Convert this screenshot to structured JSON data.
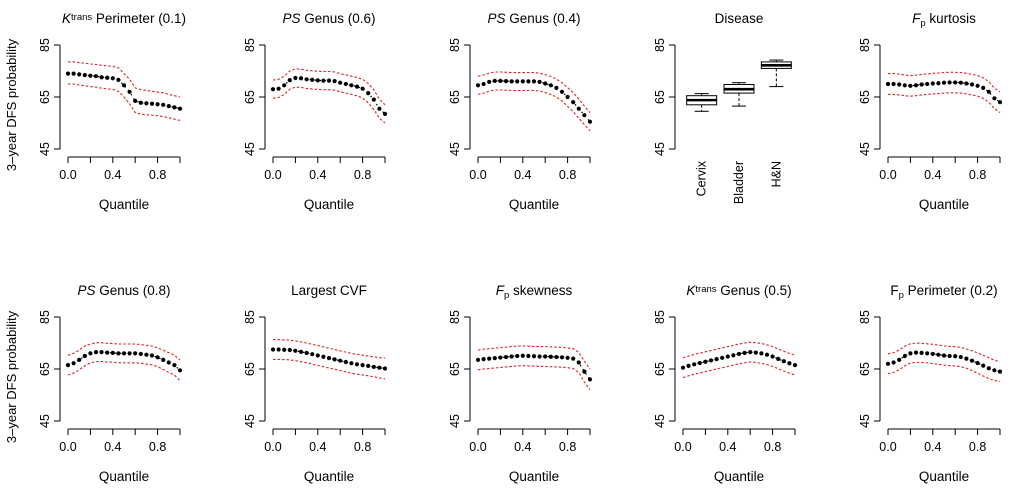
{
  "ylabel": "3–year DFS probability",
  "xlabel": "Quantile",
  "colors": {
    "main": "#000000",
    "ci": "#e32020",
    "box": "#000000"
  },
  "charts": [
    {
      "id": "ktrans-perimeter",
      "type": "line",
      "title": {
        "parts": [
          {
            "text": "K",
            "style": "italic"
          },
          {
            "text": "trans",
            "style": "sup"
          },
          {
            "text": " Perimeter (0.1)",
            "style": "normal"
          }
        ]
      },
      "xticks": [
        "0.0",
        "0.4",
        "0.8"
      ],
      "yticks": [
        "45",
        "65",
        "85"
      ],
      "ylim": [
        45,
        85
      ],
      "xlim": [
        0,
        1
      ],
      "x": [
        0,
        0.05,
        0.1,
        0.15,
        0.2,
        0.25,
        0.3,
        0.35,
        0.4,
        0.45,
        0.5,
        0.55,
        0.6,
        0.65,
        0.7,
        0.75,
        0.8,
        0.85,
        0.9,
        0.95,
        1.0
      ],
      "mean": [
        74,
        74,
        73.7,
        73.4,
        73.2,
        73,
        72.6,
        72.4,
        72.2,
        71.6,
        69.5,
        67,
        63.5,
        62.8,
        62.6,
        62.4,
        62.2,
        62,
        61.5,
        61,
        60.5
      ],
      "upper": [
        78.5,
        78.5,
        78.2,
        78,
        77.7,
        77.5,
        77.2,
        77,
        76.8,
        76.2,
        74,
        71.8,
        68.5,
        67.8,
        67.5,
        67.2,
        66.9,
        66.6,
        66,
        65.5,
        65
      ],
      "lower": [
        70,
        70,
        69.6,
        69.3,
        69,
        68.8,
        68.4,
        68.1,
        67.9,
        67.2,
        65,
        62.4,
        59,
        58.4,
        58.2,
        58,
        57.8,
        57.5,
        57,
        56.5,
        56
      ]
    },
    {
      "id": "ps-genus-06",
      "type": "line",
      "title": {
        "parts": [
          {
            "text": "PS",
            "style": "italic"
          },
          {
            "text": " Genus (0.6)",
            "style": "normal"
          }
        ]
      },
      "xticks": [
        "0.0",
        "0.4",
        "0.8"
      ],
      "yticks": [
        "45",
        "65",
        "85"
      ],
      "ylim": [
        45,
        85
      ],
      "xlim": [
        0,
        1
      ],
      "x": [
        0,
        0.05,
        0.1,
        0.15,
        0.2,
        0.25,
        0.3,
        0.35,
        0.4,
        0.45,
        0.5,
        0.55,
        0.6,
        0.65,
        0.7,
        0.75,
        0.8,
        0.85,
        0.9,
        0.95,
        1.0
      ],
      "mean": [
        68,
        68.2,
        69.5,
        71.5,
        72.3,
        72.2,
        71.8,
        71.6,
        71.4,
        71.3,
        71.3,
        71.1,
        70.5,
        70,
        69.5,
        69,
        68.2,
        66.5,
        64,
        60.5,
        58.5
      ],
      "upper": [
        71.5,
        71.8,
        73,
        75,
        75.8,
        75.7,
        75.3,
        75.1,
        74.9,
        74.8,
        74.8,
        74.6,
        74,
        73.5,
        73,
        72.5,
        71.8,
        70.2,
        67.8,
        64.2,
        62
      ],
      "lower": [
        64.5,
        64.8,
        66,
        68,
        68.8,
        68.7,
        68.3,
        68.1,
        67.9,
        67.8,
        67.8,
        67.6,
        67,
        66.5,
        66,
        65.5,
        64.6,
        62.8,
        60.2,
        56.8,
        55
      ]
    },
    {
      "id": "ps-genus-04",
      "type": "line",
      "title": {
        "parts": [
          {
            "text": "PS",
            "style": "italic"
          },
          {
            "text": " Genus (0.4)",
            "style": "normal"
          }
        ]
      },
      "xticks": [
        "0.0",
        "0.4",
        "0.8"
      ],
      "yticks": [
        "45",
        "65",
        "85"
      ],
      "ylim": [
        45,
        85
      ],
      "xlim": [
        0,
        1
      ],
      "x": [
        0,
        0.05,
        0.1,
        0.15,
        0.2,
        0.25,
        0.3,
        0.35,
        0.4,
        0.45,
        0.5,
        0.55,
        0.6,
        0.65,
        0.7,
        0.75,
        0.8,
        0.85,
        0.9,
        0.95,
        1.0
      ],
      "mean": [
        69.5,
        70,
        70.8,
        71.2,
        71.2,
        71.1,
        71,
        71,
        71,
        71,
        71,
        70.8,
        70.2,
        69.5,
        68.5,
        67,
        65,
        63,
        60.5,
        58,
        55.5
      ],
      "upper": [
        73,
        73.5,
        74.2,
        74.6,
        74.6,
        74.5,
        74.4,
        74.4,
        74.4,
        74.4,
        74.4,
        74.2,
        73.6,
        72.9,
        71.9,
        70.5,
        68.6,
        66.7,
        64.2,
        61.5,
        59
      ],
      "lower": [
        66,
        66.5,
        67.3,
        67.7,
        67.7,
        67.6,
        67.5,
        67.5,
        67.5,
        67.5,
        67.5,
        67.3,
        66.7,
        66,
        65,
        63.5,
        61.4,
        59.4,
        56.8,
        54.4,
        52
      ]
    },
    {
      "id": "disease",
      "type": "box",
      "title": {
        "parts": [
          {
            "text": "Disease",
            "style": "normal"
          }
        ]
      },
      "yticks": [
        "45",
        "65",
        "85"
      ],
      "ylim": [
        45,
        85
      ],
      "categories": [
        "Cervix",
        "Bladder",
        "H&N"
      ],
      "boxes": [
        {
          "min": 59.5,
          "q1": 62,
          "median": 63.8,
          "q3": 65.5,
          "max": 66.3
        },
        {
          "min": 61.5,
          "q1": 66.5,
          "median": 68,
          "q3": 69.8,
          "max": 70.5
        },
        {
          "min": 69,
          "q1": 76,
          "median": 77.2,
          "q3": 78.5,
          "max": 79.2
        }
      ]
    },
    {
      "id": "fp-kurtosis",
      "type": "line",
      "title": {
        "parts": [
          {
            "text": "F",
            "style": "italic"
          },
          {
            "text": "p",
            "style": "sub"
          },
          {
            "text": " kurtosis",
            "style": "normal"
          }
        ]
      },
      "xticks": [
        "0.0",
        "0.4",
        "0.8"
      ],
      "yticks": [
        "45",
        "65",
        "85"
      ],
      "ylim": [
        45,
        85
      ],
      "xlim": [
        0,
        1
      ],
      "x": [
        0,
        0.05,
        0.1,
        0.15,
        0.2,
        0.25,
        0.3,
        0.35,
        0.4,
        0.45,
        0.5,
        0.55,
        0.6,
        0.65,
        0.7,
        0.75,
        0.8,
        0.85,
        0.9,
        0.95,
        1.0
      ],
      "mean": [
        70,
        70,
        69.8,
        69.5,
        69.3,
        69.5,
        69.8,
        70,
        70.2,
        70.3,
        70.5,
        70.6,
        70.6,
        70.5,
        70.2,
        69.8,
        69.3,
        68.5,
        67,
        64.5,
        63
      ],
      "upper": [
        74,
        74,
        73.8,
        73.5,
        73.2,
        73.4,
        73.7,
        73.9,
        74.1,
        74.2,
        74.4,
        74.5,
        74.5,
        74.4,
        74.1,
        73.7,
        73.2,
        72.4,
        70.9,
        68.4,
        67
      ],
      "lower": [
        66,
        66,
        65.8,
        65.5,
        65.3,
        65.5,
        65.8,
        66,
        66.2,
        66.3,
        66.5,
        66.6,
        66.6,
        66.5,
        66.2,
        65.8,
        65.3,
        64.5,
        63,
        60.5,
        59
      ]
    },
    {
      "id": "ps-genus-08",
      "type": "line",
      "title": {
        "parts": [
          {
            "text": "PS",
            "style": "italic"
          },
          {
            "text": " Genus (0.8)",
            "style": "normal"
          }
        ]
      },
      "xticks": [
        "0.0",
        "0.4",
        "0.8"
      ],
      "yticks": [
        "45",
        "65",
        "85"
      ],
      "ylim": [
        45,
        85
      ],
      "xlim": [
        0,
        1
      ],
      "x": [
        0,
        0.05,
        0.1,
        0.15,
        0.2,
        0.25,
        0.3,
        0.35,
        0.4,
        0.45,
        0.5,
        0.55,
        0.6,
        0.65,
        0.7,
        0.75,
        0.8,
        0.85,
        0.9,
        0.95,
        1.0
      ],
      "mean": [
        66.5,
        67.2,
        68.5,
        70,
        71,
        71.5,
        71.5,
        71.3,
        71.2,
        71,
        71,
        71,
        71,
        70.8,
        70.5,
        70.2,
        69.5,
        68.5,
        67.5,
        66.5,
        64.5
      ],
      "upper": [
        70.3,
        71,
        72.3,
        73.8,
        74.6,
        75.1,
        75.1,
        74.9,
        74.8,
        74.6,
        74.6,
        74.6,
        74.6,
        74.4,
        74.1,
        73.8,
        73.1,
        72.2,
        71.3,
        70.3,
        68.5
      ],
      "lower": [
        62.7,
        63.4,
        64.7,
        66.2,
        67.4,
        67.9,
        67.9,
        67.7,
        67.6,
        67.4,
        67.4,
        67.4,
        67.4,
        67.2,
        66.9,
        66.6,
        65.9,
        64.8,
        63.7,
        62.7,
        60.5
      ]
    },
    {
      "id": "largest-cvf",
      "type": "line",
      "title": {
        "parts": [
          {
            "text": "Largest CVF",
            "style": "normal"
          }
        ]
      },
      "xticks": [
        "0.0",
        "0.4",
        "0.8"
      ],
      "yticks": [
        "45",
        "65",
        "85"
      ],
      "ylim": [
        45,
        85
      ],
      "xlim": [
        0,
        1
      ],
      "x": [
        0,
        0.05,
        0.1,
        0.15,
        0.2,
        0.25,
        0.3,
        0.35,
        0.4,
        0.45,
        0.5,
        0.55,
        0.6,
        0.65,
        0.7,
        0.75,
        0.8,
        0.85,
        0.9,
        0.95,
        1.0
      ],
      "mean": [
        72.5,
        72.5,
        72.4,
        72.3,
        72,
        71.6,
        71.2,
        70.7,
        70.2,
        69.7,
        69.2,
        68.7,
        68.2,
        67.7,
        67.2,
        66.8,
        66.5,
        66.2,
        65.8,
        65.5,
        65.2
      ],
      "upper": [
        76.3,
        76.3,
        76.2,
        76.1,
        75.8,
        75.4,
        75,
        74.5,
        74,
        73.5,
        73,
        72.5,
        72,
        71.5,
        71,
        70.6,
        70.3,
        70,
        69.7,
        69.4,
        69.2
      ],
      "lower": [
        68.7,
        68.7,
        68.6,
        68.5,
        68.2,
        67.8,
        67.4,
        66.9,
        66.4,
        65.9,
        65.4,
        64.9,
        64.4,
        63.9,
        63.4,
        63,
        62.7,
        62.4,
        62,
        61.6,
        61.2
      ]
    },
    {
      "id": "fp-skewness",
      "type": "line",
      "title": {
        "parts": [
          {
            "text": "F",
            "style": "italic"
          },
          {
            "text": "p",
            "style": "sub"
          },
          {
            "text": " skewness",
            "style": "normal"
          }
        ]
      },
      "xticks": [
        "0.0",
        "0.4",
        "0.8"
      ],
      "yticks": [
        "45",
        "65",
        "85"
      ],
      "ylim": [
        45,
        85
      ],
      "xlim": [
        0,
        1
      ],
      "x": [
        0,
        0.05,
        0.1,
        0.15,
        0.2,
        0.25,
        0.3,
        0.35,
        0.4,
        0.45,
        0.5,
        0.55,
        0.6,
        0.65,
        0.7,
        0.75,
        0.8,
        0.85,
        0.9,
        0.95,
        1.0
      ],
      "mean": [
        68.5,
        68.8,
        69,
        69.2,
        69.4,
        69.6,
        69.8,
        70,
        70.1,
        70,
        69.9,
        69.8,
        69.8,
        69.7,
        69.6,
        69.5,
        69.3,
        69,
        67.5,
        64,
        61
      ],
      "upper": [
        72.3,
        72.6,
        72.8,
        73,
        73.2,
        73.4,
        73.6,
        73.8,
        73.9,
        73.8,
        73.7,
        73.6,
        73.6,
        73.5,
        73.4,
        73.3,
        73.1,
        72.8,
        71.4,
        68,
        65
      ],
      "lower": [
        64.7,
        65,
        65.2,
        65.4,
        65.6,
        65.8,
        66,
        66.2,
        66.3,
        66.2,
        66.1,
        66,
        66,
        65.9,
        65.8,
        65.7,
        65.5,
        65.2,
        63.6,
        60,
        57
      ]
    },
    {
      "id": "ktrans-genus-05",
      "type": "line",
      "title": {
        "parts": [
          {
            "text": "K",
            "style": "italic"
          },
          {
            "text": "trans",
            "style": "sup"
          },
          {
            "text": " Genus (0.5)",
            "style": "normal"
          }
        ]
      },
      "xticks": [
        "0.0",
        "0.4",
        "0.8"
      ],
      "yticks": [
        "45",
        "65",
        "85"
      ],
      "ylim": [
        45,
        85
      ],
      "xlim": [
        0,
        1
      ],
      "x": [
        0,
        0.05,
        0.1,
        0.15,
        0.2,
        0.25,
        0.3,
        0.35,
        0.4,
        0.45,
        0.5,
        0.55,
        0.6,
        0.65,
        0.7,
        0.75,
        0.8,
        0.85,
        0.9,
        0.95,
        1.0
      ],
      "mean": [
        65.5,
        66.2,
        66.8,
        67.3,
        67.8,
        68.3,
        68.8,
        69.3,
        69.8,
        70.3,
        70.8,
        71.2,
        71.5,
        71.3,
        71,
        70.5,
        69.8,
        68.9,
        68,
        67.2,
        66.5
      ],
      "upper": [
        69.3,
        70,
        70.6,
        71.1,
        71.6,
        72.1,
        72.6,
        73.1,
        73.6,
        74.1,
        74.6,
        75,
        75.3,
        75.1,
        74.8,
        74.3,
        73.6,
        72.7,
        71.8,
        71,
        70.3
      ],
      "lower": [
        61.7,
        62.4,
        63,
        63.5,
        64,
        64.5,
        65,
        65.5,
        66,
        66.5,
        67,
        67.4,
        67.7,
        67.5,
        67.2,
        66.7,
        66,
        65.1,
        64.2,
        63.4,
        62.7
      ]
    },
    {
      "id": "fp-perimeter-02",
      "type": "line",
      "title": {
        "parts": [
          {
            "text": "F",
            "style": "normal"
          },
          {
            "text": "p",
            "style": "sub"
          },
          {
            "text": " Perimeter (0.2)",
            "style": "normal"
          }
        ]
      },
      "xticks": [
        "0.0",
        "0.4",
        "0.8"
      ],
      "yticks": [
        "45",
        "65",
        "85"
      ],
      "ylim": [
        45,
        85
      ],
      "xlim": [
        0,
        1
      ],
      "x": [
        0,
        0.05,
        0.1,
        0.15,
        0.2,
        0.25,
        0.3,
        0.35,
        0.4,
        0.45,
        0.5,
        0.55,
        0.6,
        0.65,
        0.7,
        0.75,
        0.8,
        0.85,
        0.9,
        0.95,
        1.0
      ],
      "mean": [
        67,
        67.5,
        68.5,
        70,
        71,
        71.3,
        71.2,
        71,
        70.8,
        70.5,
        70.2,
        70,
        69.9,
        69.6,
        69,
        68.2,
        67.3,
        66.3,
        65.3,
        64.5,
        64
      ],
      "upper": [
        70.8,
        71.3,
        72.3,
        73.8,
        74.7,
        75,
        74.9,
        74.7,
        74.5,
        74.2,
        73.9,
        73.7,
        73.6,
        73.3,
        72.7,
        72,
        71.2,
        70.3,
        69.3,
        68.4,
        67.8
      ],
      "lower": [
        63.2,
        63.7,
        64.7,
        66.2,
        67.3,
        67.6,
        67.5,
        67.3,
        67.1,
        66.8,
        66.5,
        66.3,
        66.2,
        65.9,
        65.3,
        64.4,
        63.4,
        62.3,
        61.3,
        60.6,
        60.2
      ]
    }
  ]
}
